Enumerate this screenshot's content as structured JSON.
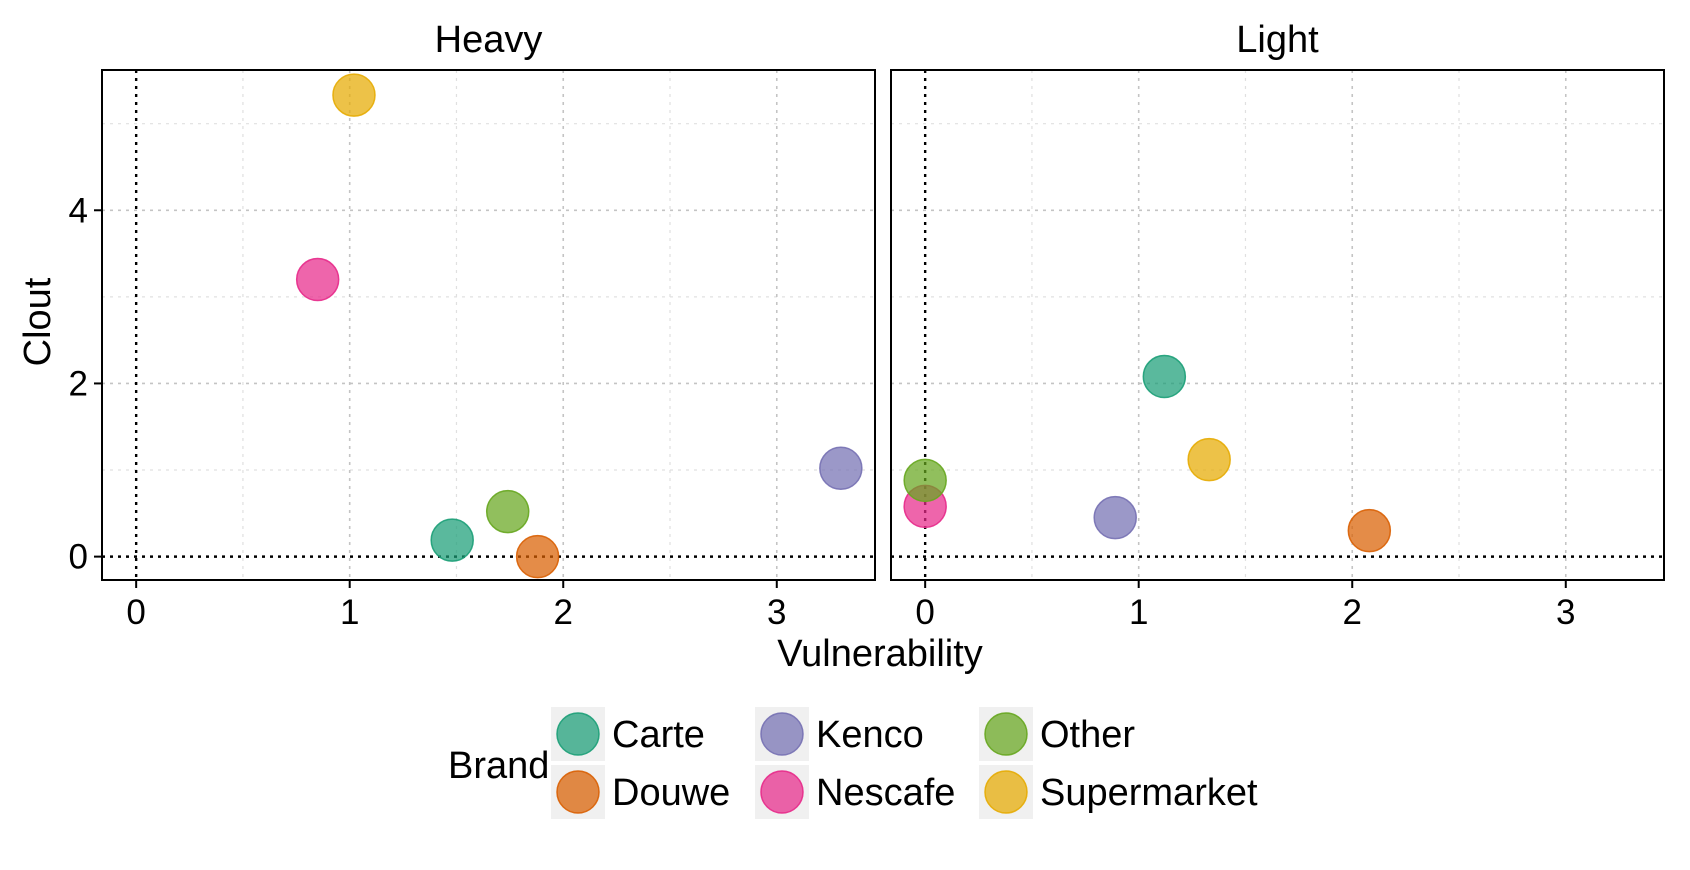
{
  "chart_data": {
    "type": "scatter",
    "xlabel": "Vulnerability",
    "ylabel": "Clout",
    "xlim": [
      -0.16,
      3.46
    ],
    "ylim": [
      -0.27,
      5.62
    ],
    "x_ticks": [
      0,
      1,
      2,
      3
    ],
    "y_ticks": [
      0,
      2,
      4
    ],
    "grid": true,
    "reference_lines": {
      "x": 0,
      "y": 0
    },
    "legend": {
      "title": "Brand",
      "placement": "bottom",
      "entries": [
        "Carte",
        "Douwe",
        "Kenco",
        "Nescafe",
        "Other",
        "Supermarket"
      ]
    },
    "colors": {
      "Carte": "#1b9e77",
      "Douwe": "#d95f02",
      "Kenco": "#7570b3",
      "Nescafe": "#e7298a",
      "Other": "#66a61e",
      "Supermarket": "#e6ab02"
    },
    "panels": [
      {
        "label": "Heavy",
        "points": [
          {
            "brand": "Carte",
            "x": 1.48,
            "y": 0.19
          },
          {
            "brand": "Douwe",
            "x": 1.88,
            "y": 0.0
          },
          {
            "brand": "Kenco",
            "x": 3.3,
            "y": 1.02
          },
          {
            "brand": "Nescafe",
            "x": 0.85,
            "y": 3.2
          },
          {
            "brand": "Other",
            "x": 1.74,
            "y": 0.52
          },
          {
            "brand": "Supermarket",
            "x": 1.02,
            "y": 5.33
          }
        ]
      },
      {
        "label": "Light",
        "points": [
          {
            "brand": "Carte",
            "x": 1.12,
            "y": 2.08
          },
          {
            "brand": "Douwe",
            "x": 2.08,
            "y": 0.3
          },
          {
            "brand": "Kenco",
            "x": 0.89,
            "y": 0.45
          },
          {
            "brand": "Nescafe",
            "x": 0.0,
            "y": 0.58
          },
          {
            "brand": "Other",
            "x": 0.0,
            "y": 0.88
          },
          {
            "brand": "Supermarket",
            "x": 1.33,
            "y": 1.12
          }
        ]
      }
    ]
  }
}
